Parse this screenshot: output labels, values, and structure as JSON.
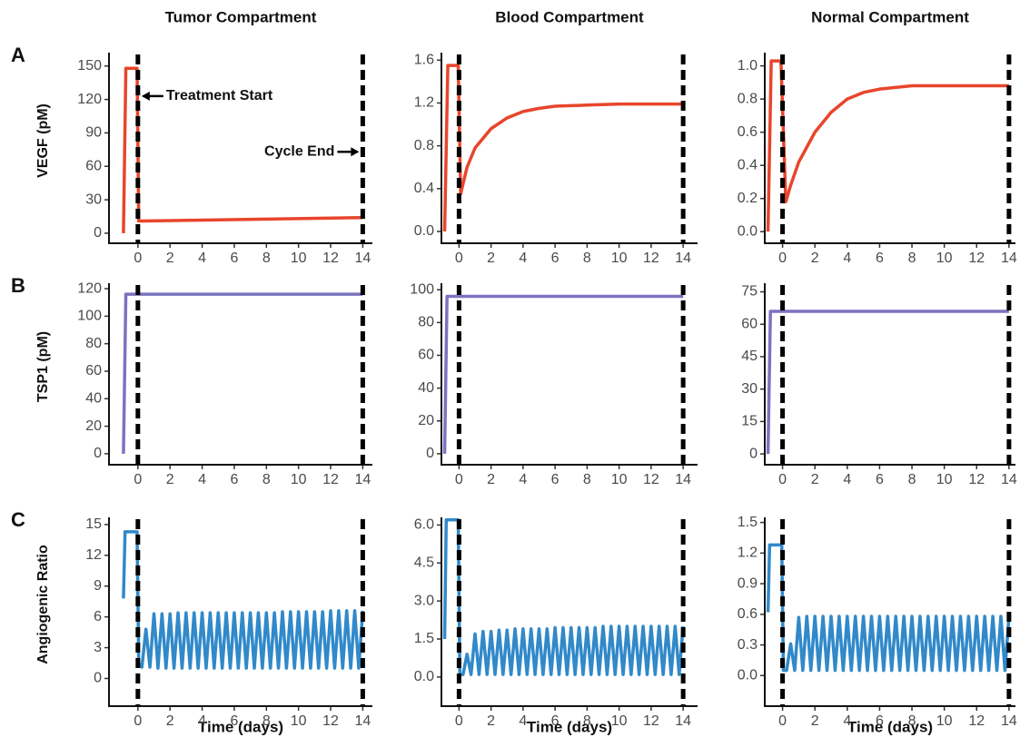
{
  "chart_data": [
    {
      "type": "line",
      "title": "Tumor Compartment",
      "panel": "A",
      "ylabel": "VEGF (pM)",
      "x": [
        -0.9,
        -0.75,
        -0.05,
        0.05,
        0.3,
        14
      ],
      "values": [
        0,
        148,
        148,
        11,
        11,
        14
      ],
      "color": "#e8452c",
      "xlim": [
        -1.8,
        14.6
      ],
      "ylim": [
        -9,
        162
      ],
      "xticks": [
        0,
        2,
        4,
        6,
        8,
        10,
        12,
        14
      ],
      "yticks": [
        0,
        30,
        60,
        90,
        120,
        150
      ],
      "vlines": [
        0,
        14
      ],
      "annotations": [
        {
          "text": "Treatment Start",
          "x": 0,
          "y": 123,
          "align": "right"
        },
        {
          "text": "Cycle End",
          "x": 14,
          "y": 73,
          "align": "left"
        }
      ]
    },
    {
      "type": "line",
      "title": "Blood Compartment",
      "x": [
        -0.9,
        -0.7,
        -0.05,
        0.1,
        0.5,
        1,
        2,
        3,
        4,
        5,
        6,
        8,
        10,
        14
      ],
      "values": [
        0,
        1.55,
        1.55,
        0.35,
        0.6,
        0.78,
        0.96,
        1.06,
        1.12,
        1.15,
        1.17,
        1.18,
        1.19,
        1.19
      ],
      "color": "#e8452c",
      "xlim": [
        -1.1,
        14.9
      ],
      "ylim": [
        -0.11,
        1.67
      ],
      "xticks": [
        0,
        2,
        4,
        6,
        8,
        10,
        12,
        14
      ],
      "yticks": [
        {
          "value": 0,
          "label": "0.0"
        },
        0.4,
        0.8,
        1.2,
        1.6
      ],
      "vlines": [
        0,
        14
      ]
    },
    {
      "type": "line",
      "title": "Normal Compartment",
      "x": [
        -0.9,
        -0.7,
        -0.1,
        0.2,
        0.5,
        1,
        2,
        3,
        4,
        5,
        6,
        8,
        10,
        14
      ],
      "values": [
        0,
        1.03,
        1.03,
        0.18,
        0.28,
        0.42,
        0.6,
        0.72,
        0.8,
        0.84,
        0.86,
        0.88,
        0.88,
        0.88
      ],
      "color": "#e8452c",
      "xlim": [
        -1.1,
        14.4
      ],
      "ylim": [
        -0.07,
        1.08
      ],
      "xticks": [
        0,
        2,
        4,
        6,
        8,
        10,
        12,
        14
      ],
      "yticks": [
        {
          "value": 0,
          "label": "0.0"
        },
        0.2,
        0.4,
        0.6,
        0.8,
        {
          "value": 1,
          "label": "1.0"
        }
      ],
      "vlines": [
        0,
        14
      ]
    },
    {
      "type": "line",
      "panel": "B",
      "ylabel": "TSP1 (pM)",
      "x": [
        -0.9,
        -0.75,
        14
      ],
      "values": [
        0,
        116,
        116
      ],
      "color": "#7b73c0",
      "xlim": [
        -1.8,
        14.6
      ],
      "ylim": [
        -8,
        124
      ],
      "xticks": [
        0,
        2,
        4,
        6,
        8,
        10,
        12,
        14
      ],
      "yticks": [
        0,
        20,
        40,
        60,
        80,
        100,
        120
      ],
      "vlines": [
        0,
        14
      ]
    },
    {
      "type": "line",
      "x": [
        -0.9,
        -0.75,
        14
      ],
      "values": [
        0,
        96,
        96
      ],
      "color": "#7b73c0",
      "xlim": [
        -1.1,
        14.9
      ],
      "ylim": [
        -6.7,
        104
      ],
      "xticks": [
        0,
        2,
        4,
        6,
        8,
        10,
        12,
        14
      ],
      "yticks": [
        0,
        20,
        40,
        60,
        80,
        100
      ],
      "vlines": [
        0,
        14
      ]
    },
    {
      "type": "line",
      "x": [
        -0.9,
        -0.75,
        14
      ],
      "values": [
        0,
        66,
        66
      ],
      "color": "#7b73c0",
      "xlim": [
        -1.1,
        14.4
      ],
      "ylim": [
        -5,
        79
      ],
      "xticks": [
        0,
        2,
        4,
        6,
        8,
        10,
        12,
        14
      ],
      "yticks": [
        0,
        15,
        30,
        45,
        60,
        75
      ],
      "vlines": [
        0,
        14
      ]
    },
    {
      "type": "line",
      "panel": "C",
      "ylabel": "Angiogenic Ratio",
      "xlabel": "Time (days)",
      "x": [
        -0.9,
        -0.8,
        -0.05,
        0.05,
        0.25,
        0.5,
        0.75,
        1,
        1.25,
        1.5,
        1.75,
        2,
        2.25,
        2.5,
        2.75,
        3,
        3.25,
        3.5,
        3.75,
        4,
        4.25,
        4.5,
        4.75,
        5,
        5.25,
        5.5,
        5.75,
        6,
        6.25,
        6.5,
        6.75,
        7,
        7.25,
        7.5,
        7.75,
        8,
        8.25,
        8.5,
        8.75,
        9,
        9.25,
        9.5,
        9.75,
        10,
        10.25,
        10.5,
        10.75,
        11,
        11.25,
        11.5,
        11.75,
        12,
        12.25,
        12.5,
        12.75,
        13,
        13.25,
        13.5,
        13.75,
        14
      ],
      "values": [
        7.8,
        14.3,
        14.3,
        1.5,
        1.1,
        4.8,
        1.1,
        6.3,
        1,
        6.3,
        1,
        6.3,
        1,
        6.4,
        1,
        6.4,
        1,
        6.4,
        1,
        6.4,
        1,
        6.4,
        1,
        6.4,
        1,
        6.4,
        1,
        6.4,
        1,
        6.4,
        1,
        6.4,
        1,
        6.4,
        1,
        6.4,
        1,
        6.4,
        1,
        6.5,
        1,
        6.5,
        1,
        6.5,
        1,
        6.5,
        1,
        6.5,
        1,
        6.5,
        1,
        6.6,
        1,
        6.6,
        1,
        6.6,
        1,
        6.6,
        1,
        6.6
      ],
      "color": "#3189c9",
      "xlim": [
        -1.8,
        14.6
      ],
      "ylim": [
        -2.7,
        15.7
      ],
      "xticks": [
        0,
        2,
        4,
        6,
        8,
        10,
        12,
        14
      ],
      "yticks": [
        0,
        3,
        6,
        9,
        12,
        15
      ],
      "vlines": [
        0,
        14
      ]
    },
    {
      "type": "line",
      "xlabel": "Time (days)",
      "x": [
        -0.9,
        -0.8,
        -0.05,
        0.05,
        0.25,
        0.5,
        0.75,
        1,
        1.25,
        1.5,
        1.75,
        2,
        2.25,
        2.5,
        2.75,
        3,
        3.25,
        3.5,
        3.75,
        4,
        4.25,
        4.5,
        4.75,
        5,
        5.25,
        5.5,
        5.75,
        6,
        6.25,
        6.5,
        6.75,
        7,
        7.25,
        7.5,
        7.75,
        8,
        8.25,
        8.5,
        8.75,
        9,
        9.25,
        9.5,
        9.75,
        10,
        10.25,
        10.5,
        10.75,
        11,
        11.25,
        11.5,
        11.75,
        12,
        12.25,
        12.5,
        12.75,
        13,
        13.25,
        13.5,
        13.75,
        14
      ],
      "values": [
        1.5,
        6.2,
        6.2,
        0.1,
        0.1,
        0.9,
        0.1,
        1.7,
        0.1,
        1.8,
        0.1,
        1.8,
        0.1,
        1.85,
        0.1,
        1.85,
        0.1,
        1.9,
        0.1,
        1.9,
        0.1,
        1.9,
        0.1,
        1.9,
        0.1,
        1.9,
        0.1,
        1.95,
        0.1,
        1.95,
        0.1,
        1.95,
        0.1,
        1.95,
        0.1,
        1.95,
        0.1,
        1.95,
        0.1,
        2,
        0.1,
        2,
        0.1,
        2,
        0.1,
        2,
        0.1,
        2,
        0.1,
        2,
        0.1,
        2,
        0.1,
        2,
        0.1,
        2,
        0.1,
        2,
        0.1,
        2
      ],
      "color": "#3189c9",
      "xlim": [
        -1.1,
        14.9
      ],
      "ylim": [
        -1.15,
        6.3
      ],
      "xticks": [
        0,
        2,
        4,
        6,
        8,
        10,
        12,
        14
      ],
      "yticks": [
        {
          "value": 0,
          "label": "0.0"
        },
        1.5,
        {
          "value": 3,
          "label": "3.0"
        },
        4.5,
        {
          "value": 6,
          "label": "6.0"
        }
      ],
      "vlines": [
        0,
        14
      ]
    },
    {
      "type": "line",
      "xlabel": "Time (days)",
      "x": [
        -0.9,
        -0.8,
        -0.05,
        0.05,
        0.25,
        0.5,
        0.75,
        1,
        1.25,
        1.5,
        1.75,
        2,
        2.25,
        2.5,
        2.75,
        3,
        3.25,
        3.5,
        3.75,
        4,
        4.25,
        4.5,
        4.75,
        5,
        5.25,
        5.5,
        5.75,
        6,
        6.25,
        6.5,
        6.75,
        7,
        7.25,
        7.5,
        7.75,
        8,
        8.25,
        8.5,
        8.75,
        9,
        9.25,
        9.5,
        9.75,
        10,
        10.25,
        10.5,
        10.75,
        11,
        11.25,
        11.5,
        11.75,
        12,
        12.25,
        12.5,
        12.75,
        13,
        13.25,
        13.5,
        13.75,
        14
      ],
      "values": [
        0.62,
        1.28,
        1.28,
        0.05,
        0.05,
        0.31,
        0.05,
        0.57,
        0.05,
        0.58,
        0.05,
        0.58,
        0.05,
        0.58,
        0.05,
        0.58,
        0.05,
        0.58,
        0.05,
        0.58,
        0.05,
        0.58,
        0.05,
        0.58,
        0.05,
        0.58,
        0.05,
        0.58,
        0.05,
        0.58,
        0.05,
        0.58,
        0.05,
        0.58,
        0.05,
        0.58,
        0.05,
        0.58,
        0.05,
        0.58,
        0.05,
        0.58,
        0.05,
        0.58,
        0.05,
        0.58,
        0.05,
        0.58,
        0.05,
        0.58,
        0.05,
        0.58,
        0.05,
        0.58,
        0.05,
        0.58,
        0.05,
        0.58,
        0.05,
        0.58
      ],
      "color": "#3189c9",
      "xlim": [
        -1.1,
        14.4
      ],
      "ylim": [
        -0.3,
        1.55
      ],
      "xticks": [
        0,
        2,
        4,
        6,
        8,
        10,
        12,
        14
      ],
      "yticks": [
        {
          "value": 0,
          "label": "0.0"
        },
        0.3,
        0.6,
        0.9,
        1.2,
        1.5
      ],
      "vlines": [
        0,
        14
      ]
    }
  ]
}
